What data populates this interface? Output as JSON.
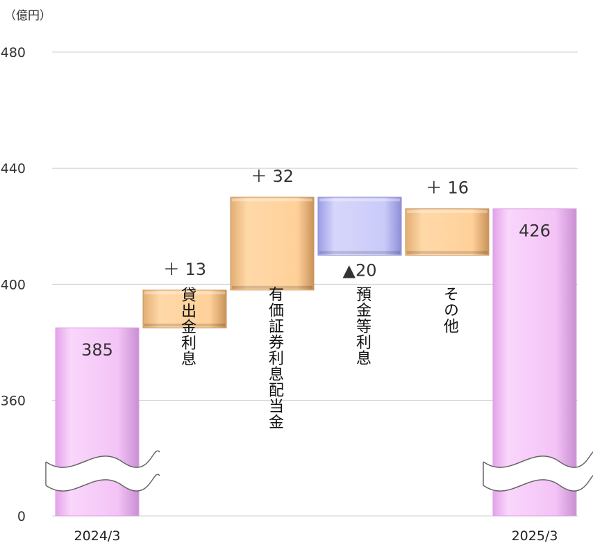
{
  "chart_data": {
    "type": "waterfall",
    "unit_label": "（億円）",
    "y_ticks": [
      {
        "label": "0",
        "value": 0
      },
      {
        "label": "360",
        "value": 360
      },
      {
        "label": "400",
        "value": 400
      },
      {
        "label": "440",
        "value": 440
      },
      {
        "label": "480",
        "value": 480
      }
    ],
    "axis_break": true,
    "ylim": [
      360,
      480
    ],
    "bars": [
      {
        "category": "2024/3",
        "kind": "total",
        "value": 385,
        "label": "385"
      },
      {
        "category": "貸出金利息",
        "kind": "increase",
        "from": 385,
        "to": 398,
        "delta_label": "＋ 13"
      },
      {
        "category": "有価証券利息配当金",
        "kind": "increase",
        "from": 398,
        "to": 430,
        "delta_label": "＋ 32"
      },
      {
        "category": "預金等利息",
        "kind": "decrease",
        "from": 430,
        "to": 410,
        "delta_label": "▲20"
      },
      {
        "category": "その他",
        "kind": "increase",
        "from": 410,
        "to": 426,
        "delta_label": "＋ 16"
      },
      {
        "category": "2025/3",
        "kind": "total",
        "value": 426,
        "label": "426"
      }
    ],
    "colors": {
      "total": "#f5c8f8",
      "increase": "#ffd19a",
      "decrease": "#c6c6f8",
      "grid": "#cfcfcf"
    }
  }
}
